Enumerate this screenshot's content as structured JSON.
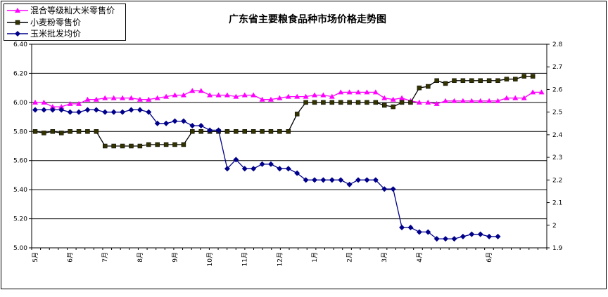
{
  "chart_data": {
    "type": "line",
    "title": "广东省主要粮食品种市场价格走势图",
    "xlabel": "",
    "ylabel": "",
    "ylim": [
      5.0,
      6.4
    ],
    "y2lim": [
      1.9,
      2.8
    ],
    "yticks": [
      "5.00",
      "5.20",
      "5.40",
      "5.60",
      "5.80",
      "6.00",
      "6.20",
      "6.40"
    ],
    "y2ticks": [
      "1.9",
      "2",
      "2.1",
      "2.2",
      "2.3",
      "2.4",
      "2.5",
      "2.6",
      "2.7",
      "2.8"
    ],
    "grid": true,
    "legend_position": "top-left",
    "month_labels": [
      "5月",
      "6月",
      "7月",
      "8月",
      "9月",
      "10月",
      "11月",
      "12月",
      "1月",
      "2月",
      "3月",
      "4月",
      "6月"
    ],
    "month_label_index": [
      0,
      4,
      8,
      12,
      16,
      20,
      24,
      28,
      32,
      36,
      40,
      44,
      52
    ],
    "series": [
      {
        "name": "混合等级籼大米零售价",
        "axis": "left",
        "color": "#ff00ff",
        "marker": "triangle",
        "values": [
          6.0,
          6.0,
          5.97,
          5.97,
          5.99,
          5.99,
          6.02,
          6.02,
          6.03,
          6.03,
          6.03,
          6.03,
          6.02,
          6.02,
          6.03,
          6.04,
          6.05,
          6.05,
          6.08,
          6.08,
          6.05,
          6.05,
          6.05,
          6.04,
          6.05,
          6.05,
          6.02,
          6.02,
          6.03,
          6.04,
          6.04,
          6.04,
          6.05,
          6.05,
          6.04,
          6.07,
          6.07,
          6.07,
          6.07,
          6.07,
          6.03,
          6.02,
          6.03,
          6.01,
          6.0,
          6.0,
          5.99,
          6.01,
          6.01,
          6.01,
          6.01,
          6.01,
          6.01,
          6.01,
          6.03,
          6.03,
          6.03,
          6.07,
          6.07
        ]
      },
      {
        "name": "小麦粉零售价",
        "axis": "left",
        "color": "#000000",
        "marker": "square",
        "values": [
          5.8,
          5.79,
          5.8,
          5.79,
          5.8,
          5.8,
          5.8,
          5.8,
          5.7,
          5.7,
          5.7,
          5.7,
          5.7,
          5.71,
          5.71,
          5.71,
          5.71,
          5.71,
          5.8,
          5.8,
          5.8,
          5.8,
          5.8,
          5.8,
          5.8,
          5.8,
          5.8,
          5.8,
          5.8,
          5.8,
          5.92,
          6.0,
          6.0,
          6.0,
          6.0,
          6.0,
          6.0,
          6.0,
          6.0,
          6.0,
          5.98,
          5.97,
          6.0,
          6.0,
          6.1,
          6.11,
          6.15,
          6.13,
          6.15,
          6.15,
          6.15,
          6.15,
          6.15,
          6.15,
          6.16,
          6.16,
          6.18,
          6.18
        ]
      },
      {
        "name": "玉米批发均价",
        "axis": "right",
        "color": "#00008b",
        "marker": "diamond",
        "values": [
          2.51,
          2.51,
          2.51,
          2.51,
          2.5,
          2.5,
          2.51,
          2.51,
          2.5,
          2.5,
          2.5,
          2.51,
          2.51,
          2.5,
          2.45,
          2.45,
          2.46,
          2.46,
          2.44,
          2.44,
          2.42,
          2.42,
          2.25,
          2.29,
          2.25,
          2.25,
          2.27,
          2.27,
          2.25,
          2.25,
          2.23,
          2.2,
          2.2,
          2.2,
          2.2,
          2.2,
          2.18,
          2.2,
          2.2,
          2.2,
          2.16,
          2.16,
          1.99,
          1.99,
          1.97,
          1.97,
          1.94,
          1.94,
          1.94,
          1.95,
          1.96,
          1.96,
          1.95,
          1.95
        ]
      }
    ]
  }
}
